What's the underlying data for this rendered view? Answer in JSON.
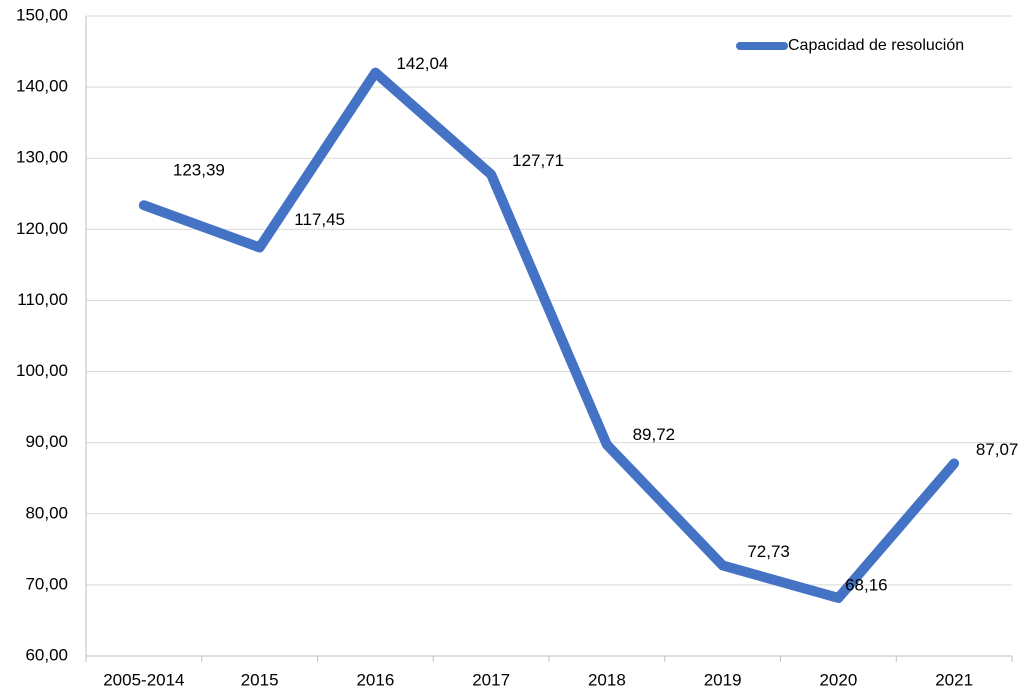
{
  "chart_data": {
    "type": "line",
    "categories": [
      "2005-2014",
      "2015",
      "2016",
      "2017",
      "2018",
      "2019",
      "2020",
      "2021"
    ],
    "series": [
      {
        "name": "Capacidad de resolución",
        "color": "#4472c4",
        "values": [
          123.39,
          117.45,
          142.04,
          127.71,
          89.72,
          72.73,
          68.16,
          87.07
        ],
        "value_labels": [
          "123,39",
          "117,45",
          "142,04",
          "127,71",
          "89,72",
          "72,73",
          "68,16",
          "87,07"
        ]
      }
    ],
    "ylim": [
      60,
      150
    ],
    "yticks": [
      {
        "value": 60,
        "label": "60,00"
      },
      {
        "value": 70,
        "label": "70,00"
      },
      {
        "value": 80,
        "label": "80,00"
      },
      {
        "value": 90,
        "label": "90,00"
      },
      {
        "value": 100,
        "label": "100,00"
      },
      {
        "value": 110,
        "label": "110,00"
      },
      {
        "value": 120,
        "label": "120,00"
      },
      {
        "value": 130,
        "label": "130,00"
      },
      {
        "value": 140,
        "label": "140,00"
      },
      {
        "value": 150,
        "label": "150,00"
      }
    ],
    "grid": true,
    "legend": "top-right"
  }
}
